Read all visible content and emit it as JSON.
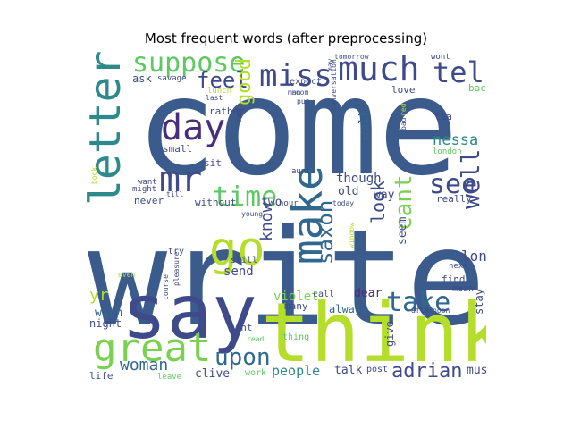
{
  "chart_data": {
    "type": "wordcloud",
    "title": "Most frequent words (after preprocessing)",
    "words": [
      {
        "text": "come",
        "weight": 1.0,
        "color": "#3b5b8c"
      },
      {
        "text": "write",
        "weight": 0.98,
        "color": "#3b5b8c"
      },
      {
        "text": "think",
        "weight": 0.72,
        "color": "#b5de2b"
      },
      {
        "text": "say",
        "weight": 0.62,
        "color": "#3e4a89"
      },
      {
        "text": "letter",
        "weight": 0.4,
        "color": "#2e8a8a"
      },
      {
        "text": "make",
        "weight": 0.4,
        "color": "#31688e"
      },
      {
        "text": "go",
        "weight": 0.38,
        "color": "#b5de2b"
      },
      {
        "text": "great",
        "weight": 0.37,
        "color": "#7ad151"
      },
      {
        "text": "much",
        "weight": 0.33,
        "color": "#3e4a89"
      },
      {
        "text": "miss",
        "weight": 0.3,
        "color": "#3e4a89"
      },
      {
        "text": "day",
        "weight": 0.3,
        "color": "#472d7b"
      },
      {
        "text": "mr",
        "weight": 0.3,
        "color": "#3e4a89"
      },
      {
        "text": "suppose",
        "weight": 0.27,
        "color": "#5ec962"
      },
      {
        "text": "tell",
        "weight": 0.26,
        "color": "#3e4a89"
      },
      {
        "text": "time",
        "weight": 0.26,
        "color": "#5ec962"
      },
      {
        "text": "take",
        "weight": 0.25,
        "color": "#31688e"
      },
      {
        "text": "see",
        "weight": 0.24,
        "color": "#3e4a89"
      },
      {
        "text": "well",
        "weight": 0.23,
        "color": "#3e4a89"
      },
      {
        "text": "cant",
        "weight": 0.22,
        "color": "#7ad151"
      },
      {
        "text": "upon",
        "weight": 0.2,
        "color": "#31688e"
      },
      {
        "text": "feel",
        "weight": 0.19,
        "color": "#3e4a89"
      },
      {
        "text": "saxon",
        "weight": 0.19,
        "color": "#31688e"
      },
      {
        "text": "good",
        "weight": 0.18,
        "color": "#b5de2b"
      },
      {
        "text": "adrian",
        "weight": 0.18,
        "color": "#3e4a89"
      },
      {
        "text": "look",
        "weight": 0.17,
        "color": "#3e4a89"
      },
      {
        "text": "woman",
        "weight": 0.16,
        "color": "#31688e"
      },
      {
        "text": "know",
        "weight": 0.16,
        "color": "#3e4a89"
      },
      {
        "text": "nessa",
        "weight": 0.15,
        "color": "#2e8a8a"
      },
      {
        "text": "yr",
        "weight": 0.15,
        "color": "#b5de2b"
      },
      {
        "text": "long",
        "weight": 0.13,
        "color": "#3e4a89"
      },
      {
        "text": "people",
        "weight": 0.13,
        "color": "#2e8a8a"
      },
      {
        "text": "walk",
        "weight": 0.12,
        "color": "#31688e"
      },
      {
        "text": "though",
        "weight": 0.12,
        "color": "#3e4a89"
      },
      {
        "text": "send",
        "weight": 0.12,
        "color": "#3e4a89"
      },
      {
        "text": "seem",
        "weight": 0.12,
        "color": "#3e4a89"
      },
      {
        "text": "dear",
        "weight": 0.12,
        "color": "#472d7b"
      },
      {
        "text": "violet",
        "weight": 0.12,
        "color": "#7ad151"
      },
      {
        "text": "talk",
        "weight": 0.12,
        "color": "#3e4a89"
      },
      {
        "text": "must",
        "weight": 0.11,
        "color": "#3e4a89"
      },
      {
        "text": "clive",
        "weight": 0.11,
        "color": "#3e4a89"
      },
      {
        "text": "two",
        "weight": 0.11,
        "color": "#3e4a89"
      },
      {
        "text": "old",
        "weight": 0.11,
        "color": "#3e4a89"
      },
      {
        "text": "way",
        "weight": 0.1,
        "color": "#3e4a89"
      },
      {
        "text": "wish",
        "weight": 0.1,
        "color": "#31688e"
      },
      {
        "text": "always",
        "weight": 0.1,
        "color": "#31688e"
      },
      {
        "text": "give",
        "weight": 0.1,
        "color": "#3e4a89"
      },
      {
        "text": "stay",
        "weight": 0.09,
        "color": "#3e4a89"
      },
      {
        "text": "night",
        "weight": 0.09,
        "color": "#3e4a89"
      },
      {
        "text": "ask",
        "weight": 0.09,
        "color": "#3e4a89"
      },
      {
        "text": "never",
        "weight": 0.09,
        "color": "#3e4a89"
      },
      {
        "text": "without",
        "weight": 0.09,
        "color": "#3e4a89"
      },
      {
        "text": "really",
        "weight": 0.09,
        "color": "#3e4a89"
      },
      {
        "text": "life",
        "weight": 0.08,
        "color": "#3e4a89"
      },
      {
        "text": "isnt",
        "weight": 0.08,
        "color": "#3e4a89"
      },
      {
        "text": "small",
        "weight": 0.08,
        "color": "#3e4a89"
      },
      {
        "text": "sit",
        "weight": 0.08,
        "color": "#3e4a89"
      },
      {
        "text": "love",
        "weight": 0.08,
        "color": "#3e4a89"
      },
      {
        "text": "rather",
        "weight": 0.08,
        "color": "#3e4a89"
      },
      {
        "text": "tea",
        "weight": 0.08,
        "color": "#3e4a89"
      },
      {
        "text": "find",
        "weight": 0.08,
        "color": "#3e4a89"
      },
      {
        "text": "many",
        "weight": 0.07,
        "color": "#3e4a89"
      },
      {
        "text": "back",
        "weight": 0.07,
        "color": "#5ec962"
      },
      {
        "text": "work",
        "weight": 0.07,
        "color": "#5ec962"
      },
      {
        "text": "post",
        "weight": 0.07,
        "color": "#3e4a89"
      },
      {
        "text": "call",
        "weight": 0.07,
        "color": "#3e4a89"
      },
      {
        "text": "thing",
        "weight": 0.07,
        "color": "#5ec962"
      },
      {
        "text": "mean",
        "weight": 0.07,
        "color": "#3e4a89"
      },
      {
        "text": "try",
        "weight": 0.07,
        "color": "#3e4a89"
      },
      {
        "text": "still",
        "weight": 0.07,
        "color": "#3e4a89"
      },
      {
        "text": "expect",
        "weight": 0.07,
        "color": "#3e4a89"
      },
      {
        "text": "wont",
        "weight": 0.07,
        "color": "#3e4a89"
      },
      {
        "text": "saw",
        "weight": 0.07,
        "color": "#3e4a89"
      },
      {
        "text": "savage",
        "weight": 0.07,
        "color": "#3e4a89"
      },
      {
        "text": "conversation",
        "weight": 0.07,
        "color": "#3e4a89"
      },
      {
        "text": "lunch",
        "weight": 0.06,
        "color": "#b5de2b"
      },
      {
        "text": "next",
        "weight": 0.06,
        "color": "#3e4a89"
      },
      {
        "text": "leave",
        "weight": 0.06,
        "color": "#5ec962"
      },
      {
        "text": "want",
        "weight": 0.06,
        "color": "#3e4a89"
      },
      {
        "text": "might",
        "weight": 0.06,
        "color": "#3e4a89"
      },
      {
        "text": "hour",
        "weight": 0.06,
        "color": "#3e4a89"
      },
      {
        "text": "aunt",
        "weight": 0.06,
        "color": "#3e4a89"
      },
      {
        "text": "london",
        "weight": 0.06,
        "color": "#5ec962"
      },
      {
        "text": "bad",
        "weight": 0.06,
        "color": "#3e4a89"
      },
      {
        "text": "red",
        "weight": 0.06,
        "color": "#b5de2b"
      },
      {
        "text": "tomorrow",
        "weight": 0.05,
        "color": "#3e4a89"
      },
      {
        "text": "room",
        "weight": 0.05,
        "color": "#3e4a89"
      },
      {
        "text": "man",
        "weight": 0.05,
        "color": "#3e4a89"
      },
      {
        "text": "put",
        "weight": 0.05,
        "color": "#3e4a89"
      },
      {
        "text": "last",
        "weight": 0.05,
        "color": "#3e4a89"
      },
      {
        "text": "may",
        "weight": 0.05,
        "color": "#3e4a89"
      },
      {
        "text": "till",
        "weight": 0.05,
        "color": "#3e4a89"
      },
      {
        "text": "young",
        "weight": 0.05,
        "color": "#3e4a89"
      },
      {
        "text": "today",
        "weight": 0.05,
        "color": "#3e4a89"
      },
      {
        "text": "book",
        "weight": 0.05,
        "color": "#b5de2b"
      },
      {
        "text": "even",
        "weight": 0.05,
        "color": "#b5de2b"
      },
      {
        "text": "course",
        "weight": 0.05,
        "color": "#3e4a89"
      },
      {
        "text": "pleasure",
        "weight": 0.05,
        "color": "#3e4a89"
      },
      {
        "text": "window",
        "weight": 0.05,
        "color": "#b5de2b"
      },
      {
        "text": "afternoon",
        "weight": 0.05,
        "color": "#3e4a89"
      },
      {
        "text": "read",
        "weight": 0.05,
        "color": "#5ec962"
      }
    ]
  }
}
